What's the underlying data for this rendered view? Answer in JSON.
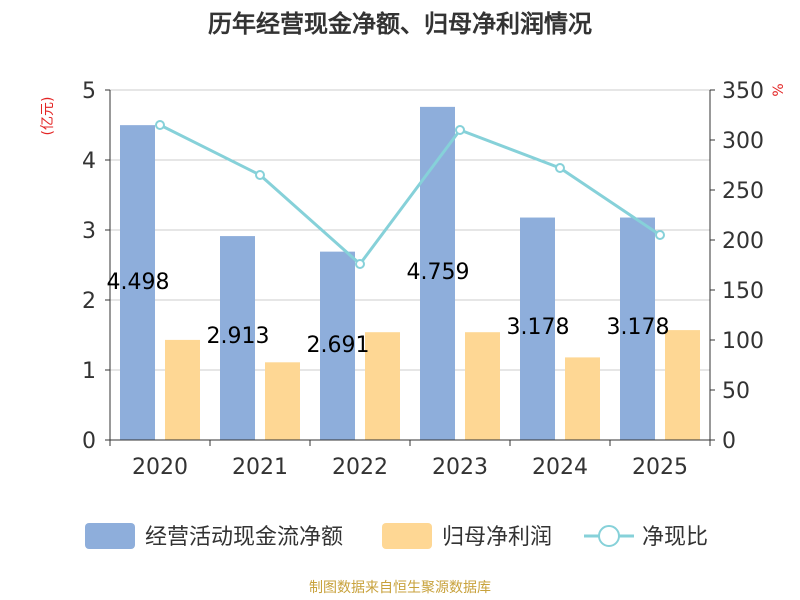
{
  "chart_data": {
    "type": "bar",
    "title": "历年经营现金净额、归母净利润情况",
    "y_left_unit": "(亿元)",
    "y_right_unit": "%",
    "categories": [
      "2020",
      "2021",
      "2022",
      "2023",
      "2024",
      "2025"
    ],
    "ylim_left": [
      0,
      5
    ],
    "yticks_left": [
      "0",
      "1",
      "2",
      "3",
      "4",
      "5"
    ],
    "ylim_right": [
      0,
      350
    ],
    "yticks_right": [
      "0",
      "50",
      "100",
      "150",
      "200",
      "250",
      "300",
      "350"
    ],
    "grid": true,
    "legend_position": "bottom",
    "series": [
      {
        "name": "经营活动现金流净额",
        "kind": "bar",
        "axis": "left",
        "color": "#8eaedb",
        "values": [
          4.498,
          2.913,
          2.691,
          4.759,
          3.178,
          3.178
        ],
        "labels": [
          "4.498",
          "2.913",
          "2.691",
          "4.759",
          "3.178",
          "3.178"
        ]
      },
      {
        "name": "归母净利润",
        "kind": "bar",
        "axis": "left",
        "color": "#fed794",
        "values": [
          1.43,
          1.11,
          1.54,
          1.54,
          1.18,
          1.57
        ]
      },
      {
        "name": "净现比",
        "kind": "line",
        "axis": "right",
        "color": "#86d1d9",
        "values": [
          315,
          265,
          176,
          310,
          272,
          205
        ]
      }
    ],
    "source_text": "制图数据来自恒生聚源数据库"
  }
}
